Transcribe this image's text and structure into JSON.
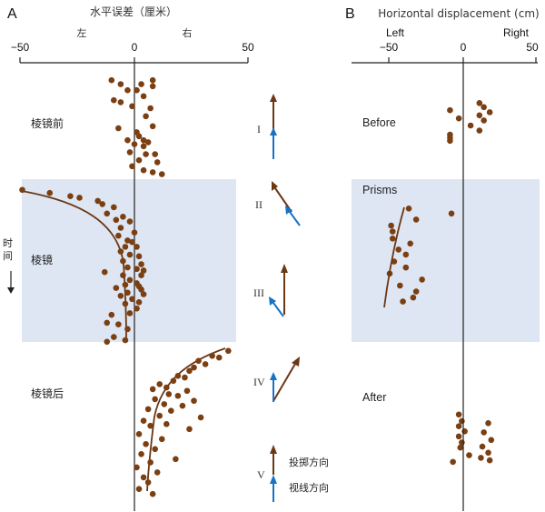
{
  "colors": {
    "background": "#ffffff",
    "prism_band": "#dde6f2",
    "point": "#7a3f12",
    "fit_curve": "#6b3714",
    "throw_arrow": "#6b3714",
    "gaze_arrow": "#1673c4",
    "axis": "#222222"
  },
  "chart_data": [
    {
      "id": "A",
      "type": "scatter",
      "panel_label": "A",
      "xlabel": "水平误差（厘米）",
      "xlim": [
        -50,
        50
      ],
      "xticks": [
        -50,
        0,
        50
      ],
      "direction_labels": {
        "left": "左",
        "right": "右"
      },
      "ylabel": "时间",
      "phases": [
        {
          "label": "棱镜前",
          "shaded": false,
          "points": [
            [
              -10,
              1
            ],
            [
              8,
              1
            ],
            [
              -6,
              3
            ],
            [
              3,
              3
            ],
            [
              8,
              4
            ],
            [
              -3,
              6
            ],
            [
              1,
              6
            ],
            [
              4,
              9
            ],
            [
              -9,
              11
            ],
            [
              -6,
              12
            ],
            [
              -1,
              14
            ],
            [
              7,
              15
            ],
            [
              5,
              19
            ],
            [
              8,
              24
            ],
            [
              -7,
              25
            ],
            [
              1,
              27
            ],
            [
              2,
              29
            ],
            [
              -3,
              31
            ],
            [
              4,
              31
            ],
            [
              6,
              32
            ],
            [
              0,
              33
            ],
            [
              4,
              34
            ],
            [
              -2,
              37
            ],
            [
              5,
              38
            ],
            [
              9,
              38
            ],
            [
              2,
              41
            ],
            [
              10,
              42
            ],
            [
              -1,
              44
            ],
            [
              4,
              46
            ],
            [
              8,
              47
            ],
            [
              12,
              48
            ]
          ]
        },
        {
          "label": "棱镜",
          "shaded": true,
          "points": [
            [
              -49,
              1
            ],
            [
              -37,
              3
            ],
            [
              -28,
              5
            ],
            [
              -24,
              6
            ],
            [
              -16,
              8
            ],
            [
              -14,
              10
            ],
            [
              -9,
              12
            ],
            [
              -12,
              16
            ],
            [
              -5,
              18
            ],
            [
              -8,
              20
            ],
            [
              -2,
              21
            ],
            [
              -6,
              25
            ],
            [
              0,
              28
            ],
            [
              -7,
              30
            ],
            [
              -3,
              33
            ],
            [
              -1,
              34
            ],
            [
              -4,
              37
            ],
            [
              1,
              37
            ],
            [
              -6,
              40
            ],
            [
              -2,
              42
            ],
            [
              2,
              43
            ],
            [
              -5,
              46
            ],
            [
              3,
              48
            ],
            [
              -3,
              50
            ],
            [
              1,
              51
            ],
            [
              4,
              52
            ],
            [
              -13,
              53
            ],
            [
              -5,
              55
            ],
            [
              3,
              55
            ],
            [
              -2,
              58
            ],
            [
              1,
              60
            ],
            [
              -4,
              61
            ],
            [
              2,
              62
            ],
            [
              -8,
              63
            ],
            [
              3,
              64
            ],
            [
              -3,
              66
            ],
            [
              4,
              67
            ],
            [
              -6,
              68
            ],
            [
              -1,
              70
            ],
            [
              2,
              72
            ],
            [
              -4,
              73
            ],
            [
              1,
              76
            ],
            [
              -2,
              79
            ],
            [
              -10,
              80
            ],
            [
              -12,
              85
            ],
            [
              -7,
              86
            ],
            [
              -3,
              89
            ],
            [
              -9,
              94
            ],
            [
              -4,
              96
            ],
            [
              -12,
              97
            ]
          ]
        },
        {
          "label": "棱镜后",
          "shaded": false,
          "points": [
            [
              41,
              1
            ],
            [
              34,
              4
            ],
            [
              37,
              5
            ],
            [
              28,
              7
            ],
            [
              31,
              9
            ],
            [
              26,
              11
            ],
            [
              24,
              13
            ],
            [
              19,
              16
            ],
            [
              22,
              17
            ],
            [
              17,
              19
            ],
            [
              11,
              21
            ],
            [
              14,
              23
            ],
            [
              8,
              24
            ],
            [
              23,
              25
            ],
            [
              15,
              27
            ],
            [
              19,
              28
            ],
            [
              9,
              30
            ],
            [
              26,
              31
            ],
            [
              13,
              33
            ],
            [
              21,
              34
            ],
            [
              6,
              36
            ],
            [
              16,
              37
            ],
            [
              11,
              40
            ],
            [
              29,
              41
            ],
            [
              4,
              43
            ],
            [
              14,
              45
            ],
            [
              7,
              46
            ],
            [
              24,
              48
            ],
            [
              2,
              51
            ],
            [
              12,
              54
            ],
            [
              5,
              57
            ],
            [
              9,
              60
            ],
            [
              3,
              63
            ],
            [
              18,
              66
            ],
            [
              7,
              68
            ],
            [
              1,
              71
            ],
            [
              10,
              74
            ],
            [
              4,
              77
            ],
            [
              6,
              80
            ],
            [
              2,
              84
            ],
            [
              8,
              87
            ]
          ]
        }
      ],
      "phase_labels": [
        "棱镜前",
        "棱镜",
        "棱镜后"
      ],
      "legend": {
        "throw": "投掷方向",
        "gaze": "视线方向"
      },
      "arrow_rows": [
        {
          "label": "I"
        },
        {
          "label": "II"
        },
        {
          "label": "III"
        },
        {
          "label": "IV"
        },
        {
          "label": "V"
        }
      ]
    },
    {
      "id": "B",
      "type": "scatter",
      "panel_label": "B",
      "xlabel": "Horizontal displacement (cm)",
      "xlim": [
        -50,
        50
      ],
      "xticks": [
        -50,
        0,
        50
      ],
      "direction_labels": {
        "left": "Left",
        "right": "Right"
      },
      "phases": [
        {
          "label": "Before",
          "shaded": false,
          "points": [
            [
              11,
              0.06
            ],
            [
              14,
              0.14
            ],
            [
              -9,
              0.2
            ],
            [
              18,
              0.24
            ],
            [
              11,
              0.3
            ],
            [
              -3,
              0.36
            ],
            [
              14,
              0.4
            ],
            [
              5,
              0.5
            ],
            [
              11,
              0.6
            ],
            [
              -9,
              0.68
            ],
            [
              -9,
              0.74
            ],
            [
              -9,
              0.8
            ]
          ]
        },
        {
          "label": "Prisms",
          "shaded": false,
          "points": [
            [
              -8,
              0.08
            ],
            [
              -32,
              0.14
            ],
            [
              -49,
              0.2
            ],
            [
              -48,
              0.26
            ],
            [
              -48,
              0.33
            ],
            [
              -36,
              0.38
            ],
            [
              -44,
              0.44
            ],
            [
              -39,
              0.49
            ],
            [
              -47,
              0.56
            ],
            [
              -39,
              0.62
            ],
            [
              -50,
              0.68
            ],
            [
              -28,
              0.74
            ],
            [
              -43,
              0.8
            ],
            [
              -32,
              0.86
            ],
            [
              -34,
              0.92
            ],
            [
              -41,
              0.96
            ],
            [
              -37,
              0.03
            ]
          ]
        },
        {
          "label": "After",
          "shaded": false,
          "points": [
            [
              -3,
              0.05
            ],
            [
              -1,
              0.18
            ],
            [
              -3,
              0.28
            ],
            [
              1,
              0.38
            ],
            [
              -3,
              0.48
            ],
            [
              -1,
              0.6
            ],
            [
              -2,
              0.7
            ],
            [
              4,
              0.85
            ],
            [
              -7,
              0.98
            ],
            [
              17,
              0.22
            ],
            [
              14,
              0.4
            ],
            [
              19,
              0.55
            ],
            [
              13,
              0.68
            ],
            [
              17,
              0.8
            ],
            [
              12,
              0.9
            ],
            [
              18,
              0.95
            ]
          ]
        }
      ],
      "phase_labels": [
        "Before",
        "Prisms",
        "After"
      ]
    }
  ]
}
